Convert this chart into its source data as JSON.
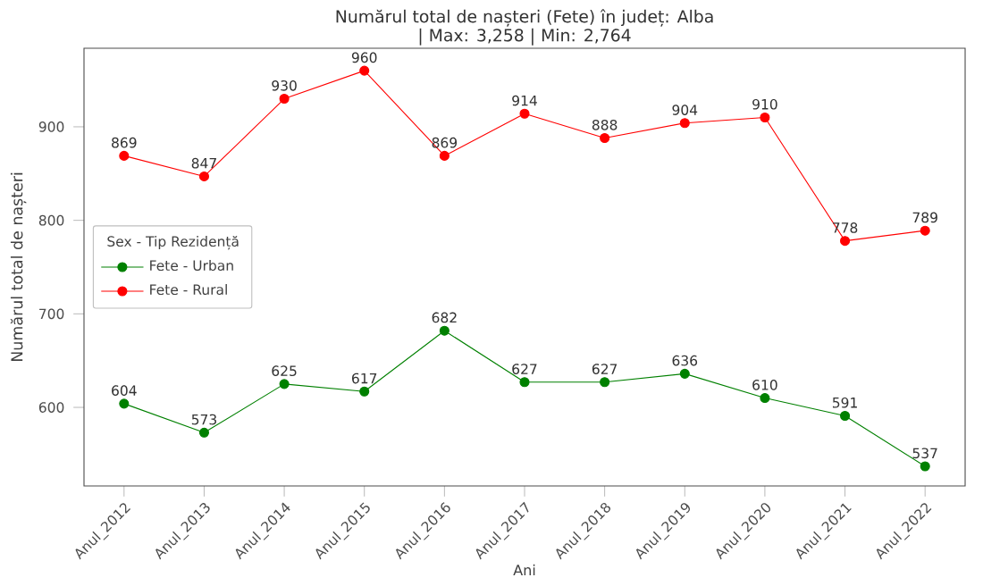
{
  "chart_data": {
    "type": "line",
    "title": "Numărul total de nașteri (Fete) în județ: Alba",
    "subtitle": "| Max: 3,258 | Min: 2,764",
    "xlabel": "Ani",
    "ylabel": "Numărul total de nașteri",
    "legend_title": "Sex - Tip Rezidență",
    "categories": [
      "Anul_2012",
      "Anul_2013",
      "Anul_2014",
      "Anul_2015",
      "Anul_2016",
      "Anul_2017",
      "Anul_2018",
      "Anul_2019",
      "Anul_2020",
      "Anul_2021",
      "Anul_2022"
    ],
    "series": [
      {
        "name": "Fete - Urban",
        "color": "#008000",
        "values": [
          604,
          573,
          625,
          617,
          682,
          627,
          627,
          636,
          610,
          591,
          537
        ]
      },
      {
        "name": "Fete - Rural",
        "color": "#ff0000",
        "values": [
          869,
          847,
          930,
          960,
          869,
          914,
          888,
          904,
          910,
          778,
          789
        ]
      }
    ],
    "ylim": [
      516,
      984
    ],
    "yticks": [
      600,
      700,
      800,
      900
    ],
    "data_labels": true,
    "legend": "left",
    "marker": "circle",
    "line_style": "solid",
    "grid": false
  }
}
